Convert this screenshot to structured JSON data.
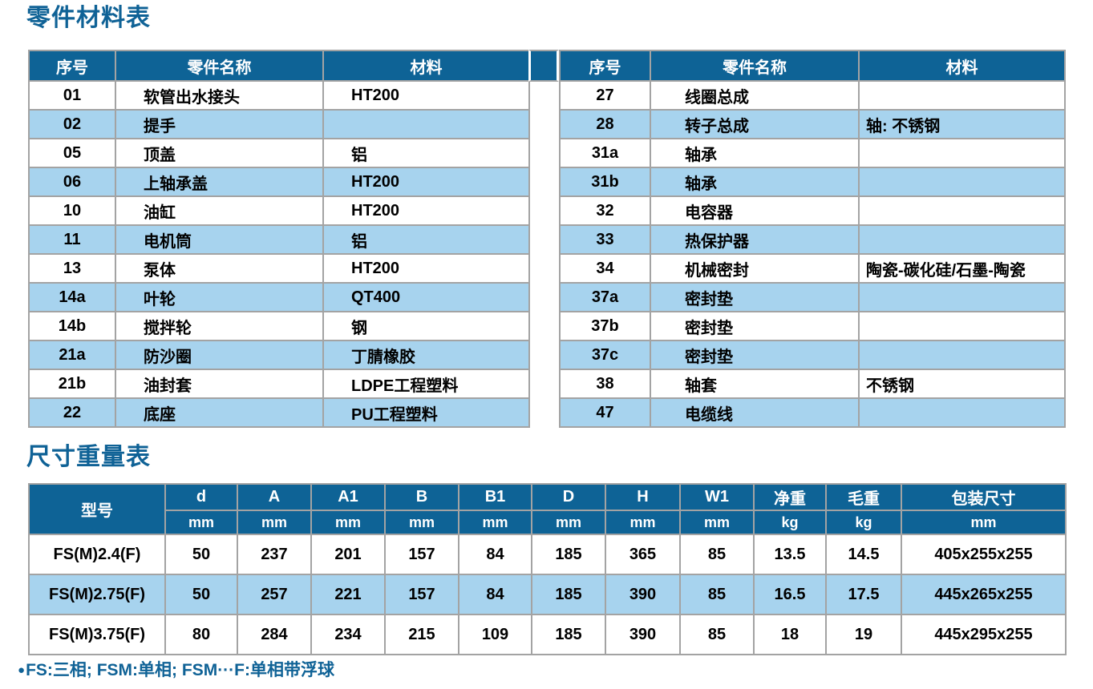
{
  "page": {
    "section1_title": "零件材料表",
    "section2_title": "尺寸重量表",
    "footnote_bullet": "●",
    "footnote_text": "FS:三相; FSM:单相; FSM···F:单相带浮球"
  },
  "colors": {
    "header_bg": "#0e6396",
    "alt_row_bg": "#a7d3ee",
    "title_text": "#0f6296",
    "grid_border": "#a3a3a3"
  },
  "parts_table": {
    "headers": [
      "序号",
      "零件名称",
      "材料"
    ],
    "left_rows": [
      {
        "no": "01",
        "name": "软管出水接头",
        "material": "HT200"
      },
      {
        "no": "02",
        "name": "提手",
        "material": ""
      },
      {
        "no": "05",
        "name": "顶盖",
        "material": "铝"
      },
      {
        "no": "06",
        "name": "上轴承盖",
        "material": "HT200"
      },
      {
        "no": "10",
        "name": "油缸",
        "material": "HT200"
      },
      {
        "no": "11",
        "name": "电机筒",
        "material": "铝"
      },
      {
        "no": "13",
        "name": "泵体",
        "material": "HT200"
      },
      {
        "no": "14a",
        "name": "叶轮",
        "material": "QT400"
      },
      {
        "no": "14b",
        "name": "搅拌轮",
        "material": "钢"
      },
      {
        "no": "21a",
        "name": "防沙圈",
        "material": "丁腈橡胶"
      },
      {
        "no": "21b",
        "name": "油封套",
        "material": "LDPE工程塑料"
      },
      {
        "no": "22",
        "name": "底座",
        "material": "PU工程塑料"
      }
    ],
    "right_rows": [
      {
        "no": "27",
        "name": "线圈总成",
        "material": ""
      },
      {
        "no": "28",
        "name": "转子总成",
        "material": "轴: 不锈钢"
      },
      {
        "no": "31a",
        "name": "轴承",
        "material": ""
      },
      {
        "no": "31b",
        "name": "轴承",
        "material": ""
      },
      {
        "no": "32",
        "name": "电容器",
        "material": ""
      },
      {
        "no": "33",
        "name": "热保护器",
        "material": ""
      },
      {
        "no": "34",
        "name": "机械密封",
        "material": "陶瓷-碳化硅/石墨-陶瓷"
      },
      {
        "no": "37a",
        "name": "密封垫",
        "material": ""
      },
      {
        "no": "37b",
        "name": "密封垫",
        "material": ""
      },
      {
        "no": "37c",
        "name": "密封垫",
        "material": ""
      },
      {
        "no": "38",
        "name": "轴套",
        "material": "不锈钢"
      },
      {
        "no": "47",
        "name": "电缆线",
        "material": ""
      }
    ]
  },
  "dimensions_table": {
    "model_header": "型号",
    "columns": [
      {
        "label": "d",
        "unit": "mm"
      },
      {
        "label": "A",
        "unit": "mm"
      },
      {
        "label": "A1",
        "unit": "mm"
      },
      {
        "label": "B",
        "unit": "mm"
      },
      {
        "label": "B1",
        "unit": "mm"
      },
      {
        "label": "D",
        "unit": "mm"
      },
      {
        "label": "H",
        "unit": "mm"
      },
      {
        "label": "W1",
        "unit": "mm"
      },
      {
        "label": "净重",
        "unit": "kg"
      },
      {
        "label": "毛重",
        "unit": "kg"
      },
      {
        "label": "包装尺寸",
        "unit": "mm"
      }
    ],
    "rows": [
      {
        "model": "FS(M)2.4(F)",
        "values": [
          "50",
          "237",
          "201",
          "157",
          "84",
          "185",
          "365",
          "85",
          "13.5",
          "14.5",
          "405x255x255"
        ]
      },
      {
        "model": "FS(M)2.75(F)",
        "values": [
          "50",
          "257",
          "221",
          "157",
          "84",
          "185",
          "390",
          "85",
          "16.5",
          "17.5",
          "445x265x255"
        ]
      },
      {
        "model": "FS(M)3.75(F)",
        "values": [
          "80",
          "284",
          "234",
          "215",
          "109",
          "185",
          "390",
          "85",
          "18",
          "19",
          "445x295x255"
        ]
      }
    ]
  }
}
